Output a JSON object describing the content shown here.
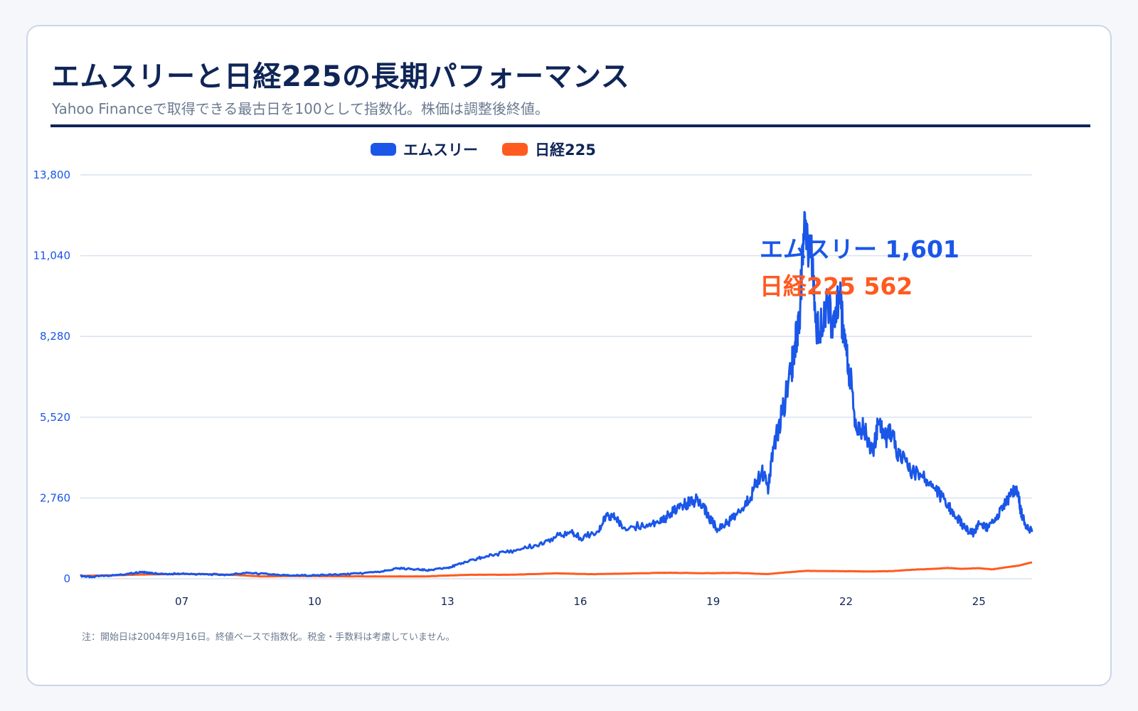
{
  "title": "エムスリーと日経225の長期パフォーマンス",
  "subtitle": "Yahoo Financeで取得できる最古日を100として指数化。株価は調整後終値。",
  "note": "注：開始日は2004年9月16日。終値ベースで指数化。税金・手数料は考慮していません。",
  "colors": {
    "m3": "#1a56e8",
    "nikkei": "#ff5a1f",
    "title": "#0f2557",
    "grid": "#d9e2ef",
    "tick": "#1a56e8"
  },
  "chart_data": {
    "type": "line",
    "legend_position": "top-center",
    "grid": true,
    "xlim": [
      2004.71,
      2026.2
    ],
    "ylim": [
      0,
      13800
    ],
    "x_ticks": [
      {
        "value": 2007,
        "label": "07"
      },
      {
        "value": 2010,
        "label": "10"
      },
      {
        "value": 2013,
        "label": "13"
      },
      {
        "value": 2016,
        "label": "16"
      },
      {
        "value": 2019,
        "label": "19"
      },
      {
        "value": 2022,
        "label": "22"
      },
      {
        "value": 2025,
        "label": "25"
      }
    ],
    "y_ticks": [
      {
        "value": 0,
        "label": "0"
      },
      {
        "value": 2760,
        "label": "2,760"
      },
      {
        "value": 5520,
        "label": "5,520"
      },
      {
        "value": 8280,
        "label": "8,280"
      },
      {
        "value": 11040,
        "label": "11,040"
      },
      {
        "value": 13800,
        "label": "13,800"
      }
    ],
    "series": [
      {
        "name": "エムスリー",
        "end_label": "エムスリー 1,601",
        "points": [
          [
            2004.71,
            100
          ],
          [
            2004.95,
            60
          ],
          [
            2005.3,
            110
          ],
          [
            2005.8,
            170
          ],
          [
            2006.1,
            230
          ],
          [
            2006.3,
            190
          ],
          [
            2006.6,
            160
          ],
          [
            2007.0,
            170
          ],
          [
            2007.5,
            150
          ],
          [
            2008.0,
            140
          ],
          [
            2008.5,
            200
          ],
          [
            2009.0,
            150
          ],
          [
            2009.5,
            110
          ],
          [
            2010.0,
            120
          ],
          [
            2010.5,
            140
          ],
          [
            2011.0,
            180
          ],
          [
            2011.5,
            240
          ],
          [
            2011.9,
            360
          ],
          [
            2012.3,
            320
          ],
          [
            2012.6,
            290
          ],
          [
            2013.0,
            380
          ],
          [
            2013.3,
            500
          ],
          [
            2013.7,
            700
          ],
          [
            2014.0,
            810
          ],
          [
            2014.5,
            970
          ],
          [
            2015.0,
            1150
          ],
          [
            2015.4,
            1420
          ],
          [
            2015.8,
            1590
          ],
          [
            2016.0,
            1400
          ],
          [
            2016.4,
            1620
          ],
          [
            2016.6,
            2150
          ],
          [
            2016.8,
            2050
          ],
          [
            2017.0,
            1750
          ],
          [
            2017.5,
            1850
          ],
          [
            2017.8,
            1900
          ],
          [
            2018.0,
            2200
          ],
          [
            2018.3,
            2500
          ],
          [
            2018.5,
            2650
          ],
          [
            2018.7,
            2700
          ],
          [
            2018.9,
            2100
          ],
          [
            2019.1,
            1700
          ],
          [
            2019.4,
            2000
          ],
          [
            2019.7,
            2450
          ],
          [
            2019.9,
            3000
          ],
          [
            2020.1,
            3700
          ],
          [
            2020.25,
            3100
          ],
          [
            2020.35,
            4500
          ],
          [
            2020.55,
            5600
          ],
          [
            2020.75,
            7000
          ],
          [
            2020.85,
            8100
          ],
          [
            2020.95,
            9000
          ],
          [
            2021.05,
            11800
          ],
          [
            2021.2,
            11300
          ],
          [
            2021.35,
            8400
          ],
          [
            2021.55,
            9400
          ],
          [
            2021.75,
            8600
          ],
          [
            2021.85,
            9800
          ],
          [
            2021.95,
            8200
          ],
          [
            2022.1,
            6800
          ],
          [
            2022.25,
            5000
          ],
          [
            2022.4,
            5200
          ],
          [
            2022.6,
            4300
          ],
          [
            2022.75,
            5400
          ],
          [
            2022.9,
            4800
          ],
          [
            2023.0,
            5100
          ],
          [
            2023.2,
            4200
          ],
          [
            2023.5,
            3700
          ],
          [
            2023.8,
            3400
          ],
          [
            2024.0,
            3100
          ],
          [
            2024.3,
            2500
          ],
          [
            2024.5,
            2100
          ],
          [
            2024.7,
            1700
          ],
          [
            2024.9,
            1550
          ],
          [
            2025.0,
            1900
          ],
          [
            2025.2,
            1750
          ],
          [
            2025.4,
            2100
          ],
          [
            2025.6,
            2600
          ],
          [
            2025.75,
            2900
          ],
          [
            2025.85,
            3150
          ],
          [
            2025.95,
            2300
          ],
          [
            2026.05,
            1850
          ],
          [
            2026.2,
            1601
          ]
        ]
      },
      {
        "name": "日経225",
        "end_label": "日経225 562",
        "points": [
          [
            2004.71,
            100
          ],
          [
            2005.5,
            120
          ],
          [
            2006.3,
            150
          ],
          [
            2007.0,
            165
          ],
          [
            2007.5,
            160
          ],
          [
            2008.2,
            130
          ],
          [
            2008.8,
            80
          ],
          [
            2009.5,
            95
          ],
          [
            2010.5,
            85
          ],
          [
            2011.5,
            80
          ],
          [
            2012.5,
            80
          ],
          [
            2013.0,
            110
          ],
          [
            2013.5,
            135
          ],
          [
            2014.5,
            140
          ],
          [
            2015.5,
            185
          ],
          [
            2016.2,
            155
          ],
          [
            2017.0,
            175
          ],
          [
            2017.9,
            205
          ],
          [
            2018.8,
            190
          ],
          [
            2019.5,
            200
          ],
          [
            2020.2,
            160
          ],
          [
            2020.7,
            220
          ],
          [
            2021.1,
            270
          ],
          [
            2021.8,
            260
          ],
          [
            2022.5,
            250
          ],
          [
            2023.0,
            260
          ],
          [
            2023.5,
            310
          ],
          [
            2024.0,
            340
          ],
          [
            2024.3,
            370
          ],
          [
            2024.6,
            340
          ],
          [
            2025.0,
            360
          ],
          [
            2025.3,
            320
          ],
          [
            2025.6,
            390
          ],
          [
            2025.9,
            450
          ],
          [
            2026.2,
            562
          ]
        ]
      }
    ]
  }
}
